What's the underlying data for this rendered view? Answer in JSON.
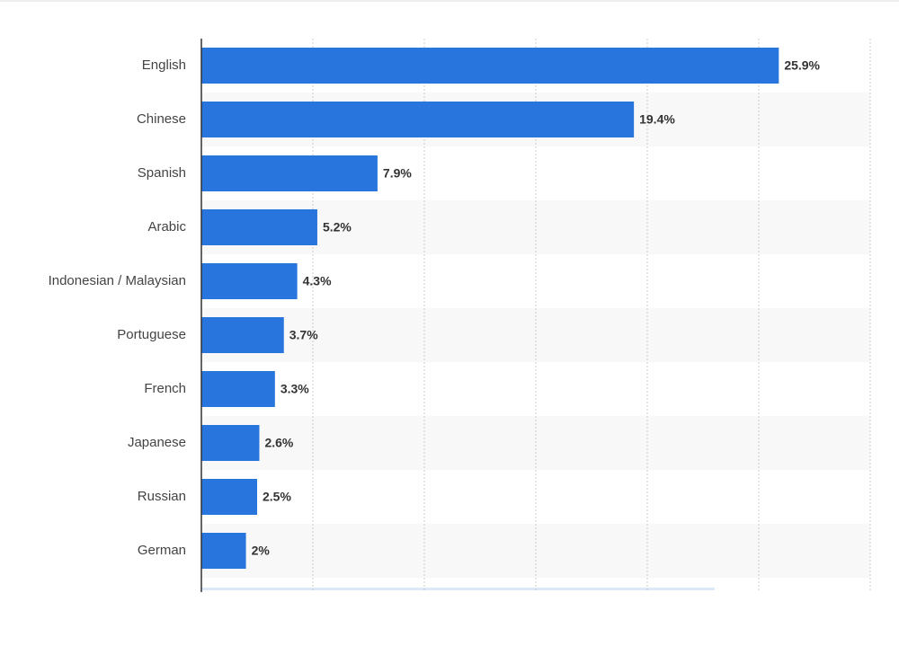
{
  "chart_data": {
    "type": "bar",
    "orientation": "horizontal",
    "categories": [
      "English",
      "Chinese",
      "Spanish",
      "Arabic",
      "Indonesian / Malaysian",
      "Portuguese",
      "French",
      "Japanese",
      "Russian",
      "German"
    ],
    "values": [
      25.9,
      19.4,
      7.9,
      5.2,
      4.3,
      3.7,
      3.3,
      2.6,
      2.5,
      2
    ],
    "value_labels": [
      "25.9%",
      "19.4%",
      "7.9%",
      "5.2%",
      "4.3%",
      "3.7%",
      "3.3%",
      "2.6%",
      "2.5%",
      "2%"
    ],
    "color": "#2876dd",
    "xlim": [
      0,
      30
    ],
    "xticks": [
      0,
      5,
      10,
      15,
      20,
      25,
      30
    ],
    "grid": true
  }
}
